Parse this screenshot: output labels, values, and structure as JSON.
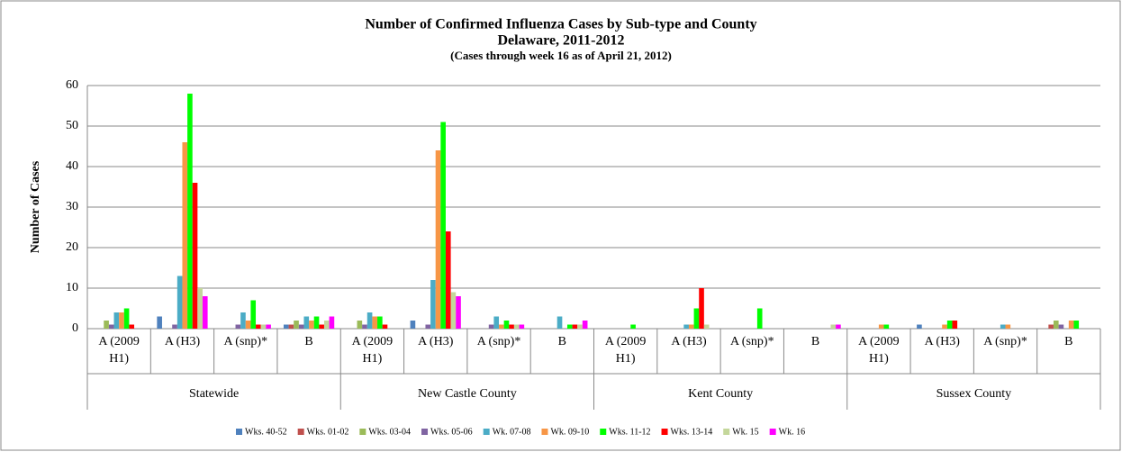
{
  "chart_data": {
    "type": "bar",
    "title": "Number of Confirmed Influenza Cases by Sub-type and County",
    "subtitle": "Delaware, 2011-2012",
    "note": "(Cases through  week 16 as of April 21, 2012)",
    "y_label": "Number of Cases",
    "categories": [
      "A (2009 H1)",
      "A (H3)",
      "A (snp)*",
      "B",
      "A (2009 H1)",
      "A (H3)",
      "A (snp)*",
      "B",
      "A (2009 H1)",
      "A (H3)",
      "A (snp)*",
      "B",
      "A (2009 H1)",
      "A (H3)",
      "A (snp)*",
      "B"
    ],
    "groups": [
      "Statewide",
      "New Castle County",
      "Kent County",
      "Sussex County"
    ],
    "ylim": [
      0,
      60
    ],
    "yticks": [
      0,
      10,
      20,
      30,
      40,
      50,
      60
    ],
    "grid": true,
    "legend": "bottom",
    "series": [
      {
        "name": "Wks. 40-52",
        "color": "#4f81bd",
        "values": [
          0,
          3,
          0,
          1,
          0,
          2,
          0,
          0,
          0,
          0,
          0,
          0,
          0,
          1,
          0,
          0
        ]
      },
      {
        "name": "Wks. 01-02",
        "color": "#c0504d",
        "values": [
          0,
          0,
          0,
          1,
          0,
          0,
          0,
          0,
          0,
          0,
          0,
          0,
          0,
          0,
          0,
          1
        ]
      },
      {
        "name": "Wks. 03-04",
        "color": "#9bbb59",
        "values": [
          2,
          0,
          0,
          2,
          2,
          0,
          0,
          0,
          0,
          0,
          0,
          0,
          0,
          0,
          0,
          2
        ]
      },
      {
        "name": "Wks. 05-06",
        "color": "#8064a2",
        "values": [
          1,
          1,
          1,
          1,
          1,
          1,
          1,
          0,
          0,
          0,
          0,
          0,
          0,
          0,
          0,
          1
        ]
      },
      {
        "name": "Wk. 07-08",
        "color": "#4bacc6",
        "values": [
          4,
          13,
          4,
          3,
          4,
          12,
          3,
          3,
          0,
          1,
          0,
          0,
          0,
          0,
          1,
          0
        ]
      },
      {
        "name": "Wk. 09-10",
        "color": "#f79646",
        "values": [
          4,
          46,
          2,
          2,
          3,
          44,
          1,
          0,
          0,
          1,
          0,
          0,
          1,
          1,
          1,
          2
        ]
      },
      {
        "name": "Wks. 11-12",
        "color": "#00ff00",
        "values": [
          5,
          58,
          7,
          3,
          3,
          51,
          2,
          1,
          1,
          5,
          5,
          0,
          1,
          2,
          0,
          2
        ]
      },
      {
        "name": "Wks. 13-14",
        "color": "#ff0000",
        "values": [
          1,
          36,
          1,
          1,
          1,
          24,
          1,
          1,
          0,
          10,
          0,
          0,
          0,
          2,
          0,
          0
        ]
      },
      {
        "name": "Wk. 15",
        "color": "#c4d79b",
        "values": [
          0,
          10,
          1,
          2,
          0,
          9,
          1,
          1,
          0,
          1,
          0,
          1,
          0,
          0,
          0,
          0
        ]
      },
      {
        "name": "Wk. 16",
        "color": "#ff00ff",
        "values": [
          0,
          8,
          1,
          3,
          0,
          8,
          1,
          2,
          0,
          0,
          0,
          1,
          0,
          0,
          0,
          0
        ]
      }
    ]
  }
}
